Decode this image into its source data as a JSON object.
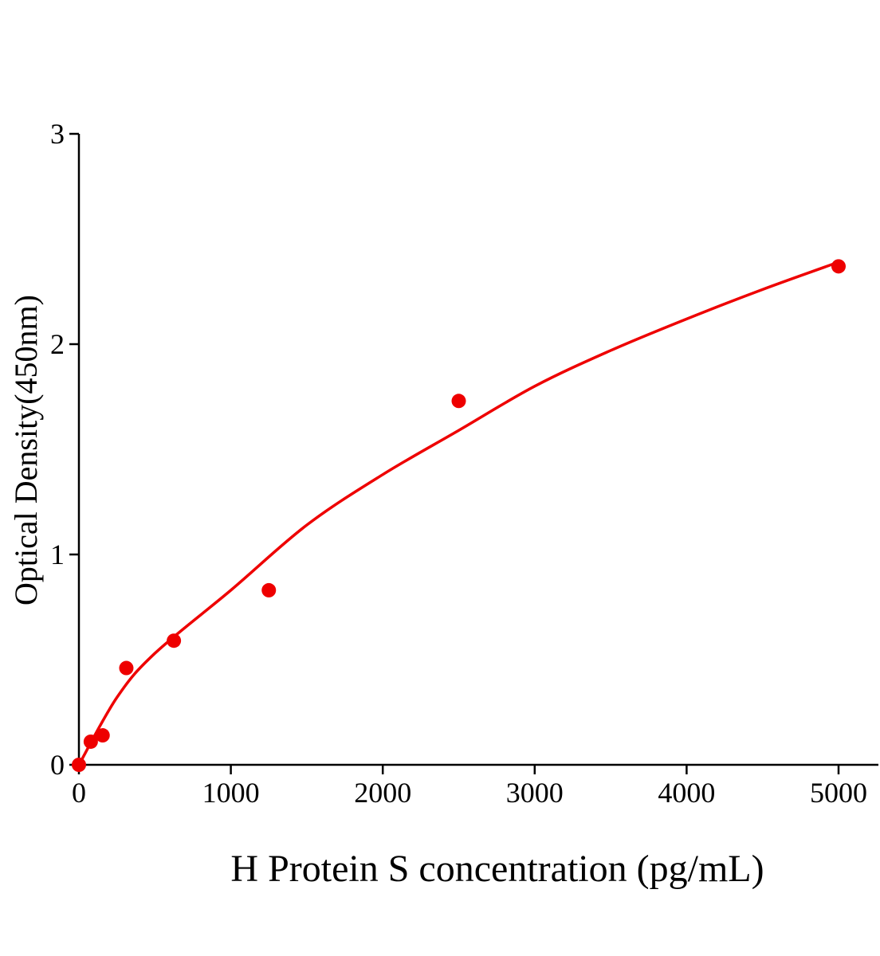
{
  "chart_data": {
    "type": "scatter",
    "title": "",
    "xlabel": "H Protein S concentration (pg/mL)",
    "ylabel": "Optical Density(450nm)",
    "xlim": [
      0,
      5000
    ],
    "ylim": [
      0,
      3
    ],
    "xticks": [
      0,
      1000,
      2000,
      3000,
      4000,
      5000
    ],
    "yticks": [
      0,
      1,
      2,
      3
    ],
    "xtick_labels": [
      "0",
      "1000",
      "2000",
      "3000",
      "4000",
      "5000"
    ],
    "ytick_labels": [
      "0",
      "1",
      "2",
      "3"
    ],
    "grid": false,
    "legend": "none",
    "color": "#ee0000",
    "points": {
      "x": [
        0,
        78,
        156,
        312,
        625,
        1250,
        2500,
        5000
      ],
      "y": [
        0.0,
        0.11,
        0.14,
        0.46,
        0.59,
        0.83,
        1.73,
        2.37
      ]
    },
    "fit_curve": {
      "x": [
        0,
        250,
        500,
        1000,
        1500,
        2000,
        2500,
        3000,
        3500,
        4000,
        4500,
        5000
      ],
      "y": [
        0.0,
        0.32,
        0.53,
        0.83,
        1.14,
        1.38,
        1.59,
        1.8,
        1.97,
        2.12,
        2.26,
        2.39
      ]
    }
  }
}
